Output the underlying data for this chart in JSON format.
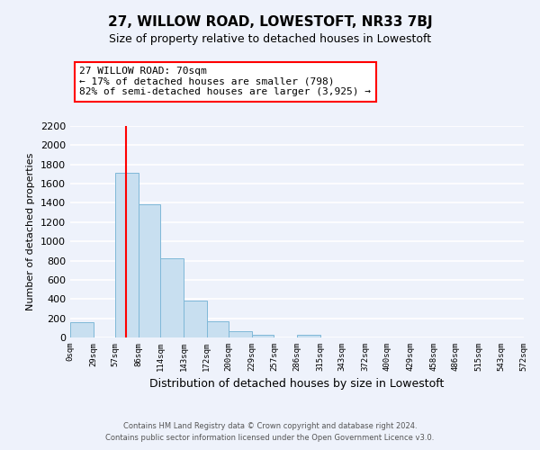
{
  "title": "27, WILLOW ROAD, LOWESTOFT, NR33 7BJ",
  "subtitle": "Size of property relative to detached houses in Lowestoft",
  "xlabel": "Distribution of detached houses by size in Lowestoft",
  "ylabel": "Number of detached properties",
  "bin_edges": [
    0,
    29,
    57,
    86,
    114,
    143,
    172,
    200,
    229,
    257,
    286,
    315,
    343,
    372,
    400,
    429,
    458,
    486,
    515,
    543,
    572
  ],
  "bar_heights": [
    155,
    0,
    1710,
    1390,
    825,
    380,
    165,
    65,
    30,
    0,
    25,
    0,
    0,
    0,
    0,
    0,
    0,
    0,
    0,
    0
  ],
  "bar_color": "#c8dff0",
  "bar_edge_color": "#7fb8d8",
  "property_line_x": 70,
  "property_line_color": "red",
  "annotation_text_line1": "27 WILLOW ROAD: 70sqm",
  "annotation_text_line2": "← 17% of detached houses are smaller (798)",
  "annotation_text_line3": "82% of semi-detached houses are larger (3,925) →",
  "annotation_box_color": "white",
  "annotation_box_edge_color": "red",
  "tick_labels": [
    "0sqm",
    "29sqm",
    "57sqm",
    "86sqm",
    "114sqm",
    "143sqm",
    "172sqm",
    "200sqm",
    "229sqm",
    "257sqm",
    "286sqm",
    "315sqm",
    "343sqm",
    "372sqm",
    "400sqm",
    "429sqm",
    "458sqm",
    "486sqm",
    "515sqm",
    "543sqm",
    "572sqm"
  ],
  "ylim": [
    0,
    2200
  ],
  "yticks": [
    0,
    200,
    400,
    600,
    800,
    1000,
    1200,
    1400,
    1600,
    1800,
    2000,
    2200
  ],
  "footer_line1": "Contains HM Land Registry data © Crown copyright and database right 2024.",
  "footer_line2": "Contains public sector information licensed under the Open Government Licence v3.0.",
  "background_color": "#eef2fb",
  "grid_color": "white",
  "title_fontsize": 11,
  "subtitle_fontsize": 9
}
